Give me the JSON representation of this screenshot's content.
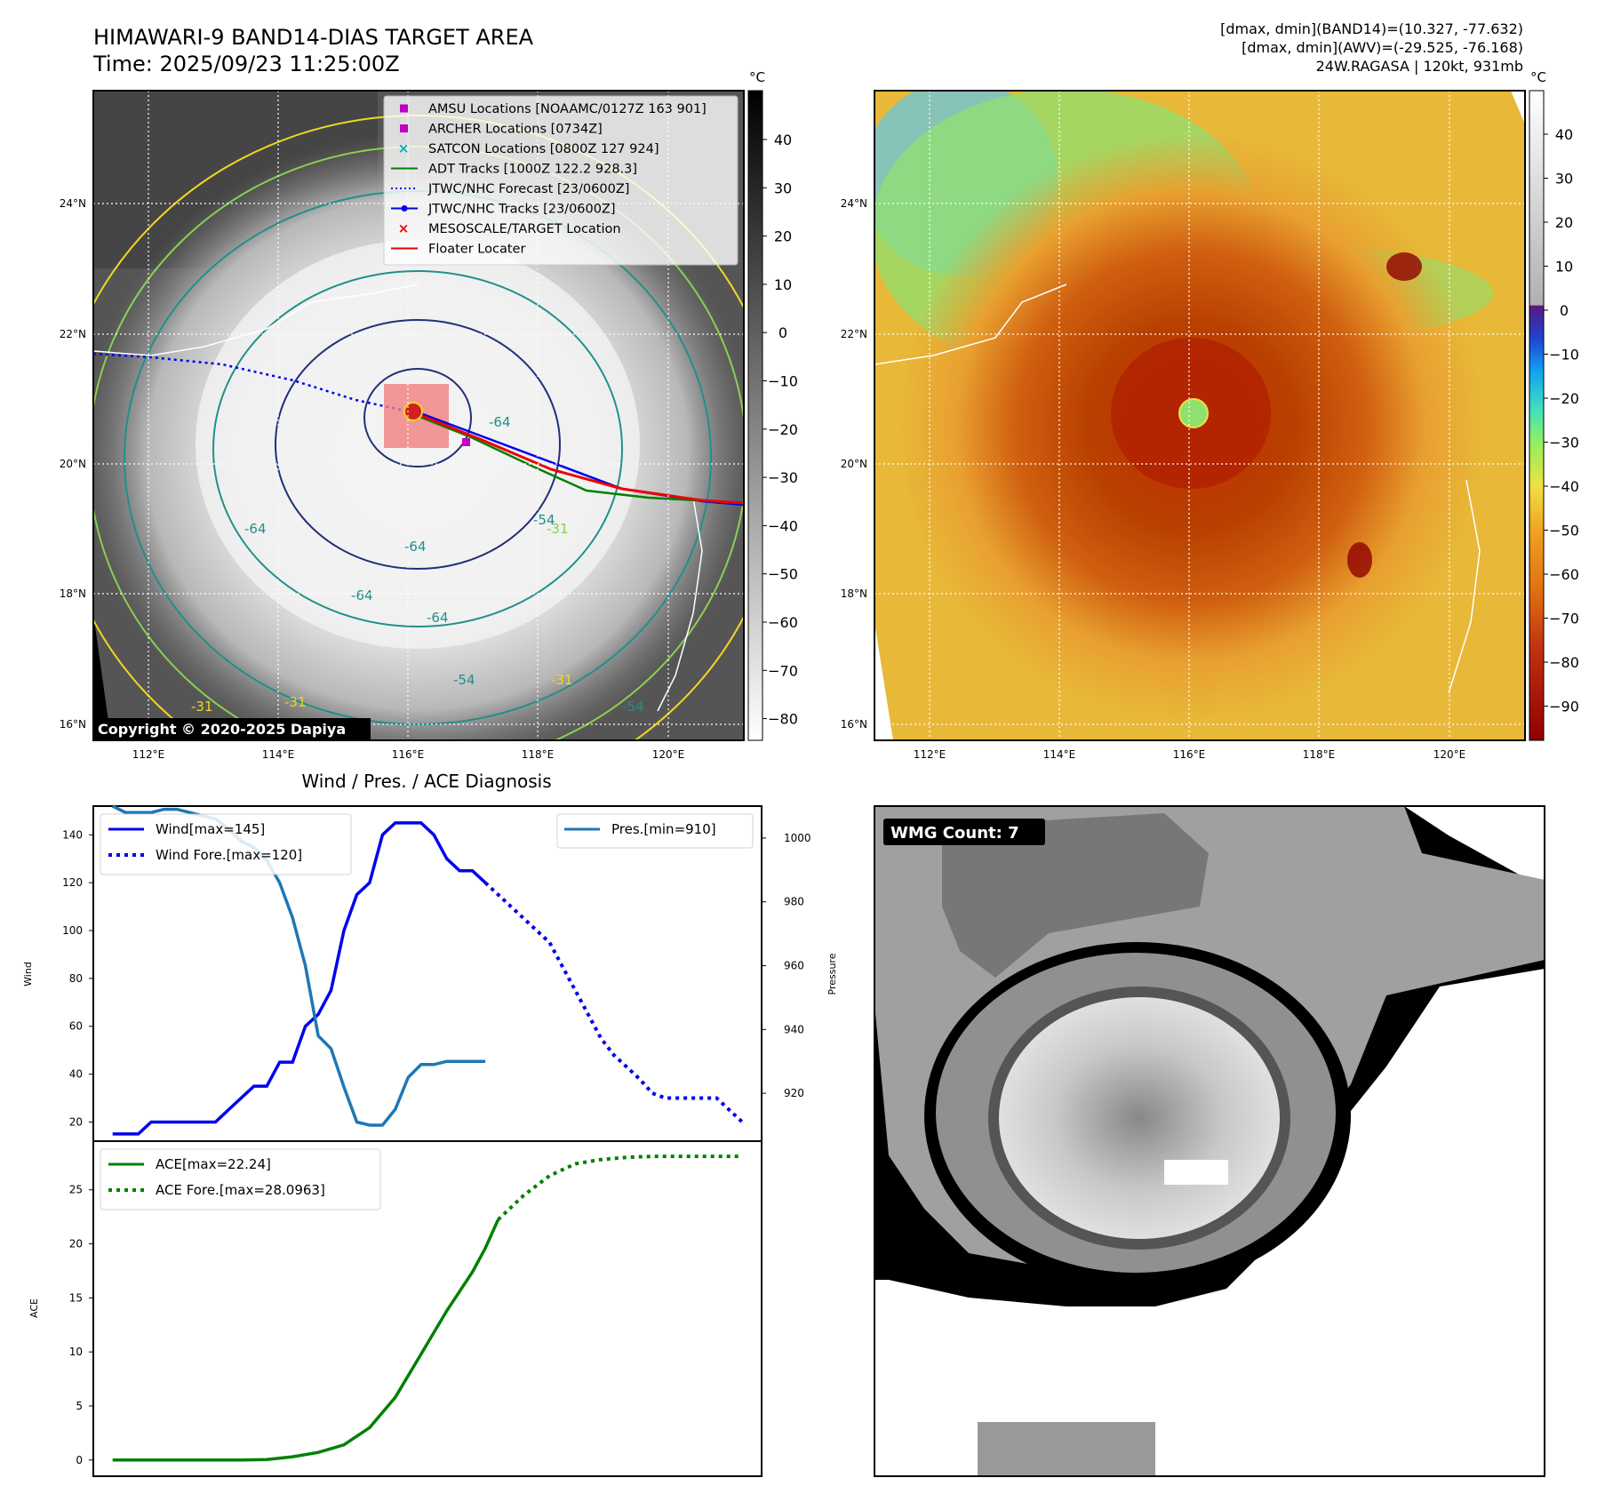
{
  "colors": {
    "eye_ring": "#d02020",
    "cold_cloud": "#ffffff",
    "warm_ground": "#444444",
    "contour_yellow": "#f0d820",
    "contour_lightgreen": "#8ad050",
    "contour_teal": "#20908a",
    "contour_navy": "#20307a",
    "wind": "#0000ee",
    "pressure": "#1f77b4",
    "ace": "#008000"
  },
  "header": {
    "title_line1": "HIMAWARI-9 BAND14-DIAS TARGET AREA",
    "title_line2": "Time: 2025/09/23 11:25:00Z",
    "info_line1": "[dmax, dmin](BAND14)=(10.327, -77.632)",
    "info_line2": "[dmax, dmin](AWV)=(-29.525, -76.168)",
    "info_line3": "24W.RAGASA | 120kt, 931mb"
  },
  "map_axes": {
    "lat_labels": [
      "24°N",
      "22°N",
      "20°N",
      "18°N",
      "16°N"
    ],
    "lon_labels": [
      "112°E",
      "114°E",
      "116°E",
      "118°E",
      "120°E"
    ]
  },
  "ir_panel": {
    "copyright": "Copyright © 2020-2025 Dapiya",
    "contour_labels": [
      "-64",
      "-64",
      "-64",
      "-64",
      "-64",
      "-54",
      "-54",
      "-54",
      "-31",
      "-31",
      "-31",
      "-31"
    ],
    "colorbar_unit": "°C",
    "colorbar_ticks": [
      "40",
      "30",
      "20",
      "10",
      "0",
      "−10",
      "−20",
      "−30",
      "−40",
      "−50",
      "−60",
      "−70",
      "−80"
    ],
    "legend": [
      {
        "label": "AMSU Locations [NOAAMC/0127Z 163 901]",
        "marker": "square",
        "color": "#c000c0"
      },
      {
        "label": "ARCHER Locations [0734Z]",
        "marker": "square",
        "color": "#c000c0"
      },
      {
        "label": "SATCON Locations [0800Z 127 924]",
        "marker": "x",
        "color": "#00b0b0"
      },
      {
        "label": "ADT Tracks [1000Z 122.2 928.3]",
        "marker": "line",
        "color": "#008000"
      },
      {
        "label": "JTWC/NHC Forecast [23/0600Z]",
        "marker": "dotted",
        "color": "#0000ee"
      },
      {
        "label": "JTWC/NHC Tracks [23/0600Z]",
        "marker": "line-dot",
        "color": "#0000ee"
      },
      {
        "label": "MESOSCALE/TARGET Location",
        "marker": "x",
        "color": "#ee0000"
      },
      {
        "label": "Floater Locater",
        "marker": "line",
        "color": "#ee0000"
      }
    ]
  },
  "awv_panel": {
    "colorbar_unit": "°C",
    "colorbar_ticks": [
      "40",
      "30",
      "20",
      "10",
      "0",
      "−10",
      "−20",
      "−30",
      "−40",
      "−50",
      "−60",
      "−70",
      "−80",
      "−90"
    ]
  },
  "wmg_panel": {
    "badge": "WMG Count: 7"
  },
  "chart_data": [
    {
      "type": "line",
      "title": "Wind / Pres. / ACE Diagnosis",
      "ylabel": "Wind",
      "y2label": "Pressure",
      "ylim": [
        12,
        152
      ],
      "y2lim": [
        905,
        1010
      ],
      "yticks": [
        20,
        40,
        60,
        80,
        100,
        120,
        140
      ],
      "y2ticks": [
        920,
        940,
        960,
        980,
        1000
      ],
      "legend": [
        "Wind[max=145]",
        "Wind Fore.[max=120]"
      ],
      "legend2": [
        "Pres.[min=910]"
      ],
      "series": [
        {
          "name": "Wind[max=145]",
          "axis": "left",
          "style": "solid",
          "x": [
            0,
            1,
            2,
            3,
            4,
            5,
            6,
            7,
            8,
            9,
            10,
            11,
            12,
            13,
            14,
            15,
            16,
            17,
            18,
            19,
            20,
            21,
            22,
            23,
            24,
            25,
            26,
            27,
            28,
            29,
            30,
            31,
            32,
            33,
            34
          ],
          "values": [
            15,
            15,
            15,
            20,
            20,
            20,
            20,
            20,
            20,
            25,
            30,
            35,
            35,
            45,
            45,
            60,
            65,
            75,
            100,
            115,
            120,
            140,
            145,
            145,
            145,
            140,
            130,
            125,
            125,
            120,
            null,
            null,
            null,
            null,
            null
          ]
        },
        {
          "name": "Wind Fore.[max=120]",
          "axis": "left",
          "style": "dotted",
          "x": [
            29,
            30,
            31,
            32,
            33,
            34,
            35,
            36,
            37,
            38,
            39,
            40,
            41,
            42,
            43,
            44,
            45,
            46,
            47,
            48,
            49
          ],
          "values": [
            120,
            115,
            110,
            105,
            100,
            95,
            85,
            75,
            65,
            55,
            48,
            43,
            38,
            32,
            30,
            30,
            30,
            30,
            30,
            25,
            20
          ]
        },
        {
          "name": "Pres.[min=910]",
          "axis": "right",
          "style": "solid",
          "x": [
            0,
            1,
            2,
            3,
            4,
            5,
            6,
            7,
            8,
            9,
            10,
            11,
            12,
            13,
            14,
            15,
            16,
            17,
            18,
            19,
            20,
            21,
            22,
            23,
            24,
            25,
            26,
            27,
            28,
            29
          ],
          "values": [
            1010,
            1008,
            1008,
            1008,
            1009,
            1009,
            1008,
            1007,
            1006,
            1003,
            999,
            997,
            993,
            986,
            975,
            960,
            938,
            934,
            922,
            911,
            910,
            910,
            915,
            925,
            929,
            929,
            930,
            930,
            930,
            930
          ]
        }
      ]
    },
    {
      "type": "line",
      "ylabel": "ACE",
      "ylim": [
        -1.5,
        29.5
      ],
      "yticks": [
        0,
        5,
        10,
        15,
        20,
        25
      ],
      "legend": [
        "ACE[max=22.24]",
        "ACE Fore.[max=28.0963]"
      ],
      "series": [
        {
          "name": "ACE[max=22.24]",
          "style": "solid",
          "x": [
            0,
            2,
            4,
            6,
            8,
            10,
            12,
            14,
            16,
            18,
            20,
            22,
            24,
            26,
            28,
            29,
            30
          ],
          "values": [
            0,
            0,
            0,
            0,
            0,
            0,
            0.05,
            0.3,
            0.7,
            1.4,
            3.0,
            5.8,
            9.8,
            13.8,
            17.4,
            19.6,
            22.24
          ]
        },
        {
          "name": "ACE Fore.[max=28.0963]",
          "style": "dotted",
          "x": [
            30,
            32,
            34,
            36,
            38,
            40,
            42,
            44,
            46,
            48,
            49
          ],
          "values": [
            22.24,
            24.5,
            26.3,
            27.4,
            27.8,
            28.0,
            28.09,
            28.09,
            28.09,
            28.09,
            28.0963
          ]
        }
      ]
    }
  ]
}
